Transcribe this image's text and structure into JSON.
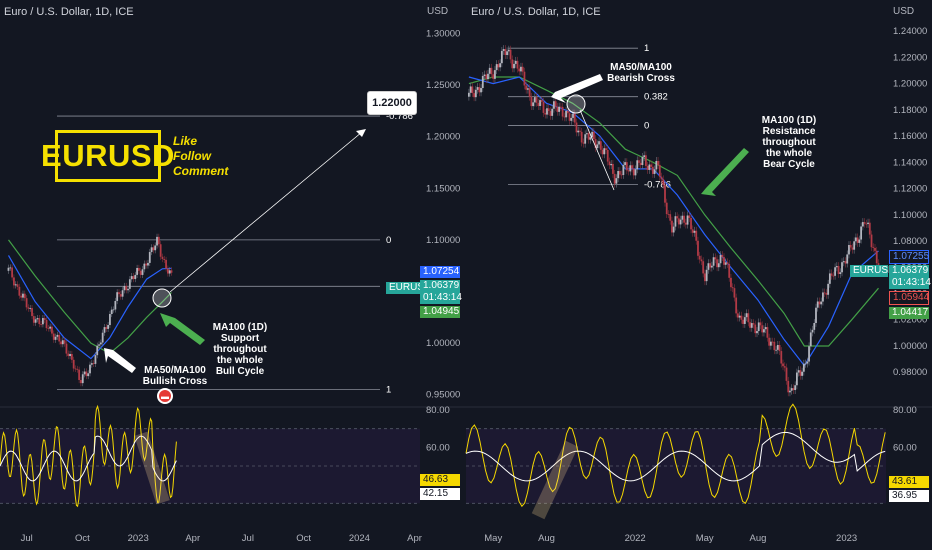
{
  "colors": {
    "background": "#131722",
    "price": "#aab0bc",
    "ma50": "#2962ff",
    "ma100": "#43a047",
    "rsi": "#f5d800",
    "rsi_ma": "#ffffff",
    "fib_line": "#8a8e99",
    "accent": "#f5e000",
    "arrow_green": "#4caf50"
  },
  "chart_data": [
    {
      "type": "line",
      "panel": "left",
      "title": "Euro / U.S. Dollar, 1D, ICE",
      "currency": "USD",
      "ylim": [
        0.94,
        1.315
      ],
      "y_ticks": [
        "1.30000",
        "1.25000",
        "1.20000",
        "1.15000",
        "1.10000",
        "1.05000",
        "1.00000",
        "0.95000"
      ],
      "x_ticks": [
        "Jul",
        "Oct",
        "2023",
        "Apr",
        "Jul",
        "Oct",
        "2024",
        "Apr"
      ],
      "price": {
        "x": [
          "2022-06-01",
          "2022-06-20",
          "2022-07-05",
          "2022-07-25",
          "2022-08-15",
          "2022-09-01",
          "2022-09-15",
          "2022-09-27",
          "2022-10-10",
          "2022-10-25",
          "2022-11-10",
          "2022-11-25",
          "2022-12-10",
          "2022-12-28",
          "2023-01-10",
          "2023-01-26",
          "2023-02-02",
          "2023-02-15",
          "2023-02-25"
        ],
        "y": [
          1.07,
          1.05,
          1.03,
          1.02,
          1.01,
          0.995,
          0.985,
          0.96,
          0.975,
          0.99,
          1.02,
          1.04,
          1.055,
          1.065,
          1.075,
          1.09,
          1.1,
          1.075,
          1.062
        ]
      },
      "ma50": {
        "x": [
          "2022-06-01",
          "2022-07-15",
          "2022-09-01",
          "2022-10-15",
          "2022-11-15",
          "2022-12-15",
          "2023-01-15",
          "2023-02-10",
          "2023-02-25"
        ],
        "y": [
          1.085,
          1.04,
          1.005,
          0.985,
          1.005,
          1.035,
          1.062,
          1.072,
          1.0725
        ]
      },
      "ma100": {
        "x": [
          "2022-06-01",
          "2022-07-15",
          "2022-09-01",
          "2022-10-15",
          "2022-11-15",
          "2022-12-15",
          "2023-01-15",
          "2023-02-10",
          "2023-02-25"
        ],
        "y": [
          1.1,
          1.065,
          1.03,
          1.0,
          0.99,
          1.005,
          1.025,
          1.04,
          1.049
        ]
      },
      "fib_levels": [
        {
          "label": "-0.786",
          "value": 1.22
        },
        {
          "label": "0",
          "value": 1.1
        },
        {
          "label": "0.382",
          "value": 1.055
        },
        {
          "label": "1",
          "value": 0.955
        }
      ],
      "price_tags": [
        {
          "value": "1.07254",
          "kind": "ma50"
        },
        {
          "value": "1.06379",
          "kind": "last",
          "symbol": "EURUSD",
          "countdown": "01:43:14"
        },
        {
          "value": "1.04945",
          "kind": "ma100"
        }
      ],
      "annotations": {
        "target": "1.22000",
        "cross_note": "MA50/MA100\nBullish Cross",
        "support_note": "MA100 (1D)\nSupport\nthroughout\nthe whole\nBull Cycle"
      },
      "rsi": {
        "ylim": [
          20,
          80
        ],
        "y_ticks": [
          "80.00",
          "60.00"
        ],
        "values_tags": [
          "46.63",
          "42.15"
        ]
      }
    },
    {
      "type": "line",
      "panel": "right",
      "title": "Euro / U.S. Dollar, 1D, ICE",
      "currency": "USD",
      "ylim": [
        0.955,
        1.25
      ],
      "y_ticks": [
        "1.24000",
        "1.22000",
        "1.20000",
        "1.18000",
        "1.16000",
        "1.14000",
        "1.12000",
        "1.10000",
        "1.08000",
        "1.06000",
        "1.04000",
        "1.02000",
        "1.00000",
        "0.98000"
      ],
      "x_ticks": [
        "May",
        "Aug",
        "2022",
        "May",
        "Aug",
        "2023"
      ],
      "price": {
        "x": [
          "2021-03-20",
          "2021-04-10",
          "2021-05-01",
          "2021-05-25",
          "2021-06-15",
          "2021-07-10",
          "2021-08-05",
          "2021-09-01",
          "2021-10-01",
          "2021-11-01",
          "2021-11-25",
          "2021-12-20",
          "2022-01-15",
          "2022-02-10",
          "2022-03-05",
          "2022-04-01",
          "2022-05-01",
          "2022-06-01",
          "2022-07-01",
          "2022-08-01",
          "2022-09-01",
          "2022-09-27",
          "2022-10-20",
          "2022-11-15",
          "2022-12-10",
          "2023-01-05",
          "2023-02-01",
          "2023-02-25"
        ],
        "y": [
          1.19,
          1.2,
          1.21,
          1.225,
          1.21,
          1.185,
          1.18,
          1.18,
          1.16,
          1.155,
          1.13,
          1.135,
          1.14,
          1.135,
          1.09,
          1.1,
          1.055,
          1.07,
          1.02,
          1.015,
          1.0,
          0.965,
          0.985,
          1.035,
          1.055,
          1.07,
          1.095,
          1.064
        ]
      },
      "ma50": {
        "x": [
          "2021-03-20",
          "2021-05-01",
          "2021-06-15",
          "2021-08-01",
          "2021-09-15",
          "2021-11-01",
          "2021-12-15",
          "2022-02-01",
          "2022-03-15",
          "2022-05-01",
          "2022-06-15",
          "2022-08-01",
          "2022-09-15",
          "2022-10-20",
          "2022-12-01",
          "2023-01-10",
          "2023-02-25"
        ],
        "y": [
          1.205,
          1.2,
          1.205,
          1.185,
          1.178,
          1.16,
          1.135,
          1.135,
          1.115,
          1.085,
          1.06,
          1.035,
          1.005,
          0.985,
          1.015,
          1.055,
          1.0725
        ]
      },
      "ma100": {
        "x": [
          "2021-03-20",
          "2021-05-01",
          "2021-06-15",
          "2021-08-01",
          "2021-09-15",
          "2021-11-01",
          "2021-12-15",
          "2022-02-01",
          "2022-03-15",
          "2022-05-01",
          "2022-06-15",
          "2022-08-01",
          "2022-09-15",
          "2022-10-20",
          "2022-12-01",
          "2023-01-10",
          "2023-02-25"
        ],
        "y": [
          1.2,
          1.205,
          1.205,
          1.195,
          1.185,
          1.17,
          1.15,
          1.14,
          1.13,
          1.1,
          1.075,
          1.05,
          1.025,
          1.0,
          1.0,
          1.02,
          1.044
        ]
      },
      "fib_levels": [
        {
          "label": "1",
          "value": 1.227
        },
        {
          "label": "0.382",
          "value": 1.19
        },
        {
          "label": "0",
          "value": 1.168
        },
        {
          "label": "-0.786",
          "value": 1.123
        }
      ],
      "price_tags": [
        {
          "value": "1.07255",
          "kind": "ma50"
        },
        {
          "value": "1.06379",
          "kind": "last",
          "symbol": "EURUSD",
          "countdown": "01:43:14"
        },
        {
          "value": "1.05944",
          "kind": "red"
        },
        {
          "value": "1.04417",
          "kind": "ma100"
        }
      ],
      "annotations": {
        "cross_note": "MA50/MA100\nBearish Cross",
        "resistance_note": "MA100 (1D)\nResistance\nthroughout\nthe whole\nBear Cycle"
      },
      "rsi": {
        "ylim": [
          20,
          80
        ],
        "y_ticks": [
          "80.00",
          "60.00"
        ],
        "values_tags": [
          "43.61",
          "36.95"
        ]
      }
    }
  ],
  "brand": {
    "logo": "EURUSD",
    "cta": [
      "Like",
      "Follow",
      "Comment"
    ]
  }
}
